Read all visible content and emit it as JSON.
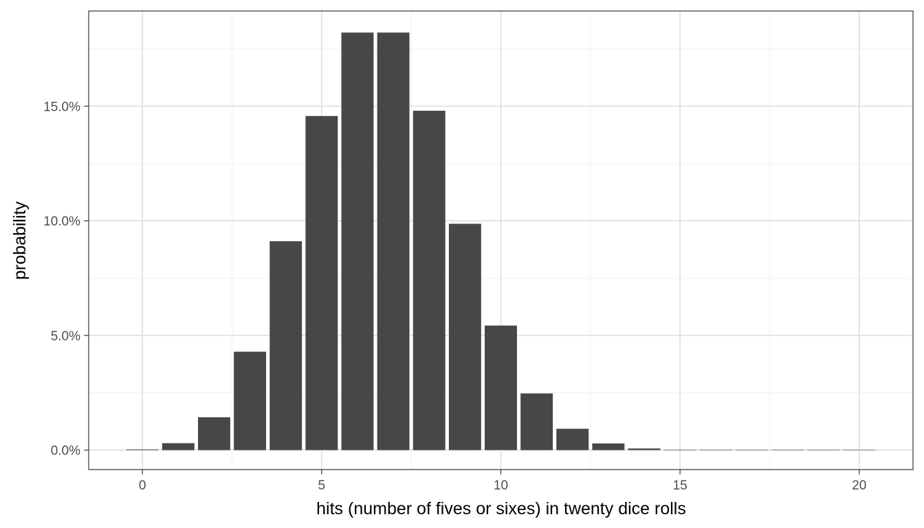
{
  "chart_data": {
    "type": "bar",
    "xlabel": "hits (number of fives or sixes) in twenty dice rolls",
    "ylabel": "probability",
    "xlim": [
      -1.5,
      21.5
    ],
    "ylim": [
      -0.0085,
      0.1915
    ],
    "x_ticks": [
      0,
      5,
      10,
      15,
      20
    ],
    "x_tick_labels": [
      "0",
      "5",
      "10",
      "15",
      "20"
    ],
    "x_minor_ticks": [
      2.5,
      7.5,
      12.5,
      17.5
    ],
    "y_ticks": [
      0,
      0.05,
      0.1,
      0.15
    ],
    "y_tick_labels": [
      "0.0%",
      "5.0%",
      "10.0%",
      "15.0%"
    ],
    "y_minor_ticks": [
      0.025,
      0.075,
      0.125,
      0.175
    ],
    "grid": true,
    "categories": [
      0,
      1,
      2,
      3,
      4,
      5,
      6,
      7,
      8,
      9,
      10,
      11,
      12,
      13,
      14,
      15,
      16,
      17,
      18,
      19,
      20
    ],
    "values": [
      0.0003,
      0.003,
      0.0143,
      0.0429,
      0.0911,
      0.1457,
      0.1821,
      0.1821,
      0.148,
      0.0987,
      0.0543,
      0.0247,
      0.0093,
      0.0029,
      0.0007,
      0.0001,
      2e-05,
      3e-06,
      3e-07,
      2e-08,
      1e-09
    ],
    "colors": {
      "bar": "#474747",
      "panel_border": "#333333",
      "grid_major": "#e3e3e3",
      "grid_minor": "#f2f2f2",
      "tick_mark": "#333333"
    }
  }
}
